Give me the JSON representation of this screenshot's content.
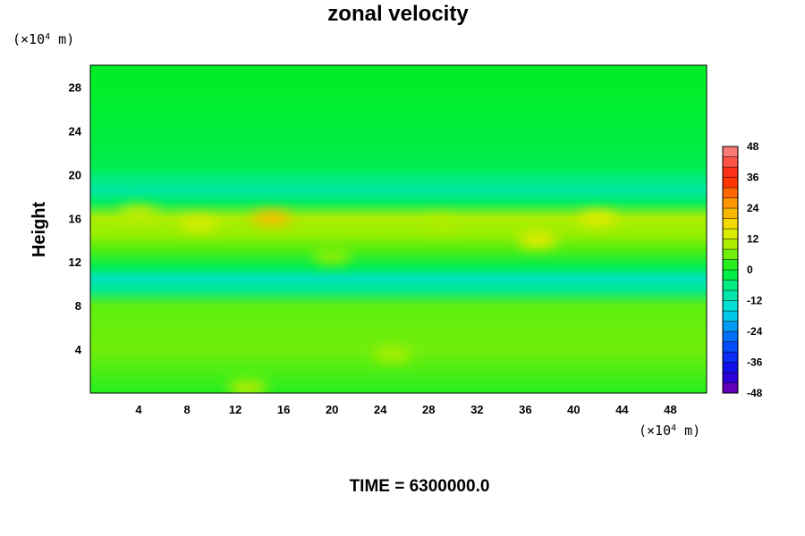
{
  "chart_data": {
    "type": "heatmap",
    "title": "zonal velocity",
    "ylabel": "Height",
    "x_unit_prefix": "(×10",
    "x_unit_exp": "4",
    "x_unit_suffix": " m)",
    "y_unit_prefix": "(×10",
    "y_unit_exp": "4",
    "y_unit_suffix": " m)",
    "xlim": [
      0,
      51
    ],
    "ylim": [
      0,
      30
    ],
    "xticks": [
      4,
      8,
      12,
      16,
      20,
      24,
      28,
      32,
      36,
      40,
      44,
      48
    ],
    "yticks": [
      4,
      8,
      12,
      16,
      20,
      24,
      28
    ],
    "colorbar": {
      "min": -48,
      "max": 48,
      "step": 4,
      "ticks": [
        48,
        36,
        24,
        12,
        0,
        -12,
        -24,
        -36,
        -48
      ]
    },
    "field_bands_height_value": [
      [
        0,
        2
      ],
      [
        4,
        6
      ],
      [
        8,
        5
      ],
      [
        9.5,
        -8
      ],
      [
        10.5,
        -12
      ],
      [
        11.5,
        -3
      ],
      [
        13,
        4
      ],
      [
        14.5,
        8
      ],
      [
        16,
        10
      ],
      [
        17.5,
        -4
      ],
      [
        18.5,
        -9
      ],
      [
        19.5,
        -6
      ],
      [
        20.5,
        -3
      ],
      [
        22,
        -2
      ],
      [
        28,
        0
      ],
      [
        30,
        0
      ]
    ],
    "hotspots": [
      {
        "x": 15,
        "y": 16,
        "value": 22
      },
      {
        "x": 9,
        "y": 15.5,
        "value": 14
      },
      {
        "x": 4,
        "y": 16.5,
        "value": 12
      },
      {
        "x": 37,
        "y": 14,
        "value": 16
      },
      {
        "x": 42,
        "y": 16,
        "value": 15
      },
      {
        "x": 13,
        "y": 0.5,
        "value": 12
      },
      {
        "x": 25,
        "y": 3.5,
        "value": 10
      },
      {
        "x": 20,
        "y": 12.5,
        "value": 8
      },
      {
        "x": 29,
        "y": 15.5,
        "value": 10
      }
    ],
    "time_label": "TIME = 6300000.0"
  },
  "colors": {
    "background": "#ffffff",
    "axis": "#000000"
  }
}
